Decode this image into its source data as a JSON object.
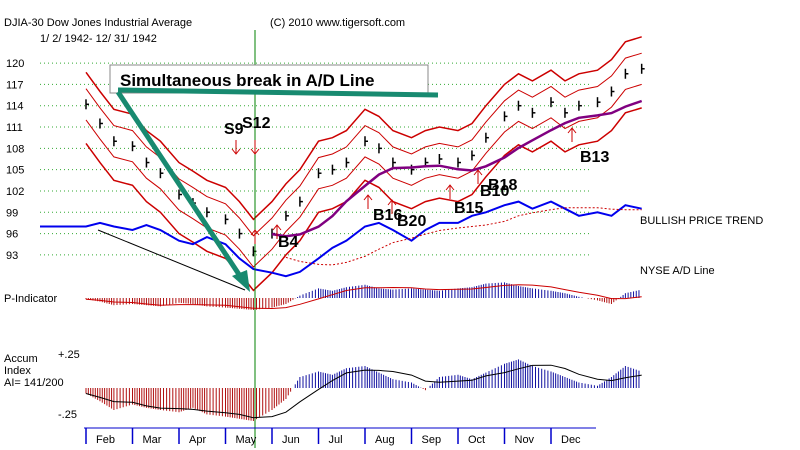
{
  "header": {
    "title": "DJIA-30  Dow Jones Industrial Average",
    "copyright": "(C) 2010 www.tigersoft.com",
    "date_range": "1/ 2/ 1942- 12/ 31/ 1942"
  },
  "annotation": "Simultaneous break in A/D Line",
  "right_labels": {
    "trend": "BULLISH PRICE TREND",
    "ad_line": "NYSE A/D Line"
  },
  "panels": {
    "p_indicator": "P-Indicator",
    "accum_title_1": "Accum",
    "accum_title_2": "Index",
    "accum_ai": "AI= 141/200",
    "accum_top": "+.25",
    "accum_bottom": "-.25"
  },
  "colors": {
    "price_bars": "#000000",
    "bands": "#cc0000",
    "ma_purple": "#800080",
    "ad_line": "#0000ee",
    "positive": "#1010a0",
    "negative": "#b01010",
    "arrow": "#188a70",
    "vline": "#008000",
    "axis": "#0000cc",
    "grid": "#33aa33"
  },
  "chart_data": {
    "type": "line",
    "title": "DJIA-30 Dow Jones Industrial Average 1942",
    "ylim": [
      92,
      121
    ],
    "y_ticks": [
      120,
      117,
      114,
      111,
      108,
      105,
      102,
      99,
      96,
      93
    ],
    "y_tick_labels": [
      "120",
      "117",
      "114",
      "111",
      "108",
      "105",
      "102",
      "99",
      "96",
      "93"
    ],
    "months": [
      "Feb",
      "Mar",
      "Apr",
      "May",
      "Jun",
      "Jul",
      "Aug",
      "Sep",
      "Oct",
      "Nov",
      "Dec"
    ],
    "price_series": {
      "name": "DJIA",
      "x": [
        0,
        0.3,
        0.6,
        1,
        1.3,
        1.6,
        2,
        2.3,
        2.6,
        3,
        3.3,
        3.6,
        4,
        4.3,
        4.6,
        5,
        5.3,
        5.6,
        6,
        6.3,
        6.6,
        7,
        7.3,
        7.6,
        8,
        8.3,
        8.6,
        9,
        9.3,
        9.6,
        10,
        10.3,
        10.6,
        11,
        11.3,
        11.6,
        11.95
      ],
      "values": [
        114.2,
        111.5,
        109,
        108.3,
        106,
        104.5,
        101.5,
        100.3,
        99,
        98,
        96,
        93.5,
        96,
        98.5,
        100.5,
        104.5,
        105,
        106,
        109,
        108,
        106,
        105,
        106,
        106.5,
        106,
        107,
        109.5,
        112.5,
        114,
        113,
        114.5,
        113,
        114,
        114.5,
        116,
        118.5,
        119.2
      ]
    },
    "signals": [
      "S9",
      "S12",
      "B4",
      "B16",
      "B20",
      "B15",
      "B10",
      "B18",
      "B13"
    ],
    "ad_line": {
      "name": "NYSE A/D Line",
      "values": [
        97,
        97.5,
        97,
        96.5,
        97.2,
        96.5,
        95,
        94.5,
        95.5,
        94.5,
        92.5,
        91,
        90.5,
        90,
        90.6,
        92.5,
        94,
        95,
        97,
        97.5,
        96.5,
        95,
        96.5,
        97.5,
        97.5,
        98.5,
        99,
        100,
        100.5,
        99.5,
        100.5,
        99.5,
        98.5,
        99,
        98.5,
        100,
        99.5
      ]
    },
    "p_indicator_values": [
      -0.1,
      -0.3,
      -0.6,
      -0.5,
      -0.6,
      -0.7,
      -0.4,
      -0.5,
      -0.7,
      -0.8,
      -0.9,
      -1,
      -0.8,
      -0.5,
      0.2,
      0.8,
      0.6,
      0.9,
      1.1,
      0.8,
      0.7,
      0.8,
      0.7,
      0.6,
      0.8,
      0.9,
      1.2,
      1.3,
      1,
      0.8,
      0.6,
      0.4,
      0.1,
      -0.2,
      -0.5,
      0.4,
      0.7
    ],
    "accum_values": [
      -0.05,
      -0.12,
      -0.2,
      -0.15,
      -0.18,
      -0.2,
      -0.22,
      -0.18,
      -0.24,
      -0.26,
      -0.28,
      -0.3,
      -0.2,
      -0.1,
      0.1,
      0.15,
      0.12,
      0.18,
      0.2,
      0.14,
      0.08,
      0.05,
      -0.02,
      0.1,
      0.12,
      0.08,
      0.14,
      0.22,
      0.26,
      0.2,
      0.15,
      0.1,
      0.05,
      0.02,
      0.1,
      0.2,
      0.15
    ]
  }
}
